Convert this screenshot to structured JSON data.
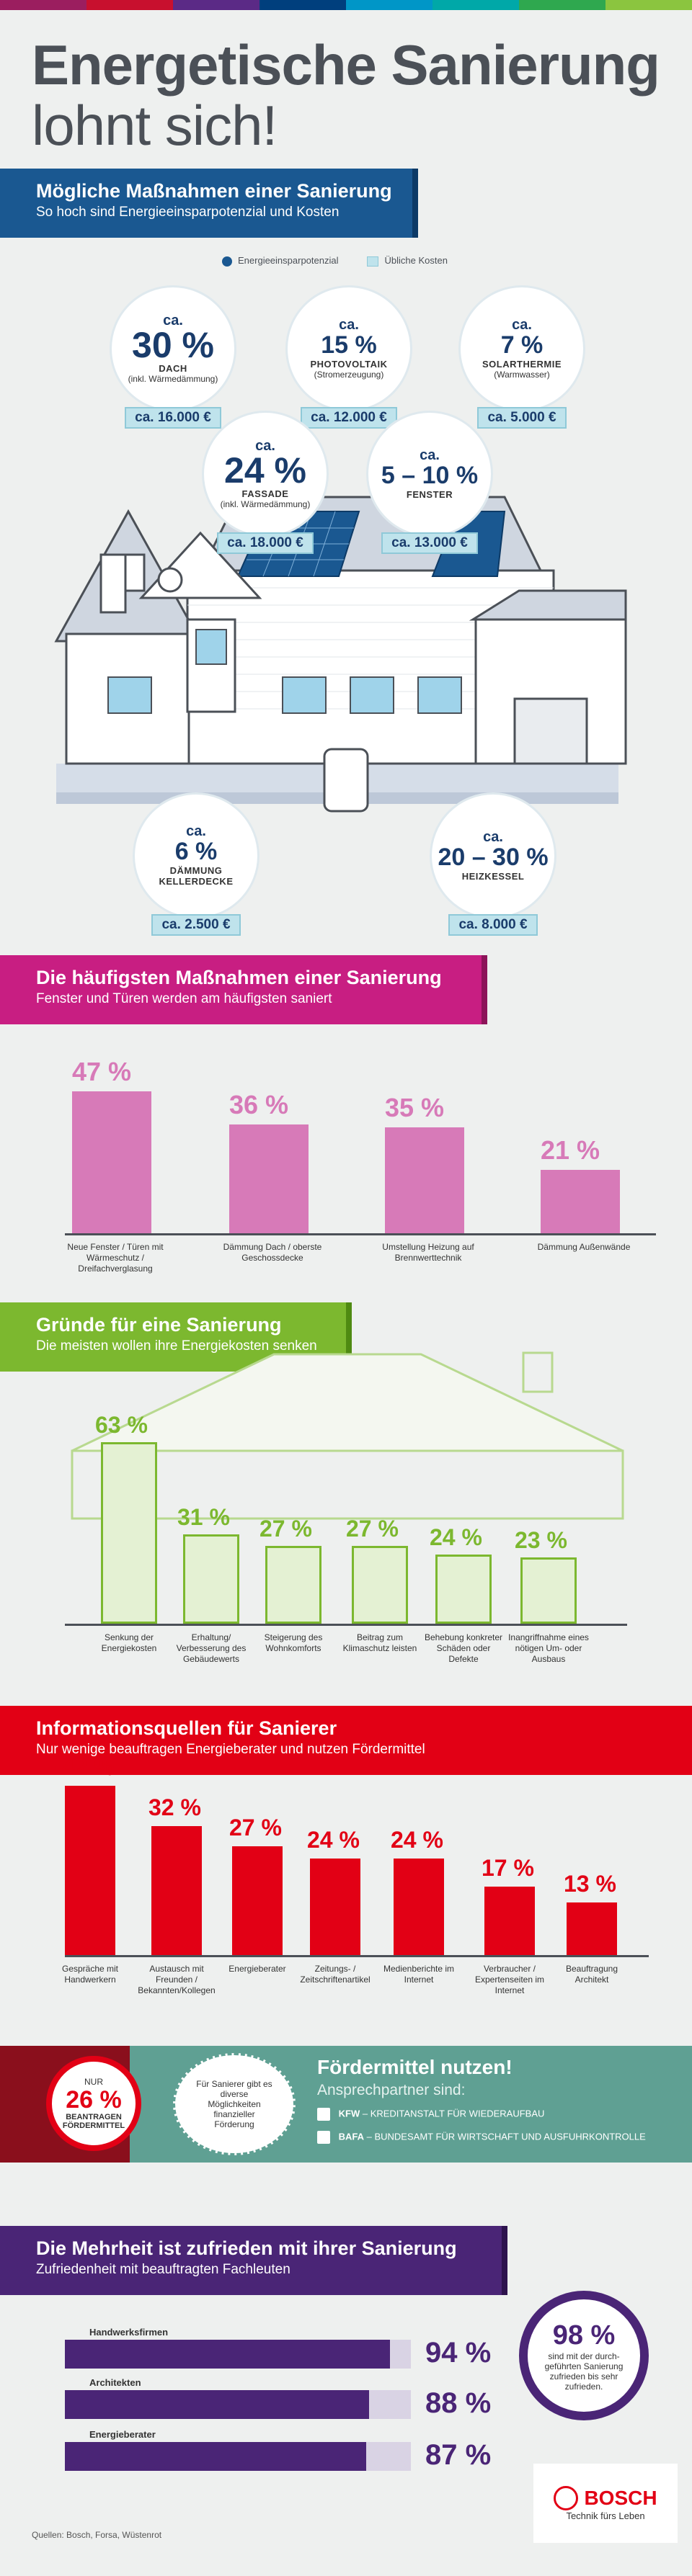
{
  "colors": {
    "blue": "#1a5891",
    "pink": "#c81e82",
    "green": "#7cb82f",
    "red": "#e20015",
    "teal": "#5fa093",
    "purple": "#4a2576"
  },
  "hero": {
    "line1": "Energetische Sanierung",
    "line2": "lohnt sich!"
  },
  "s1": {
    "title": "Mögliche Maßnahmen einer Sanierung",
    "subtitle": "So hoch sind Energieeinsparpotenzial und Kosten",
    "legend_potential": "Energieeinsparpotenzial",
    "legend_cost": "Übliche Kosten",
    "items": [
      {
        "ca": "ca.",
        "pct": "30 %",
        "name": "DACH",
        "sub": "(inkl. Wärmedämmung)",
        "cost": "ca. 16.000 €"
      },
      {
        "ca": "ca.",
        "pct": "15 %",
        "name": "PHOTOVOLTAIK",
        "sub": "(Stromerzeugung)",
        "cost": "ca. 12.000 €"
      },
      {
        "ca": "ca.",
        "pct": "7 %",
        "name": "SOLARTHERMIE",
        "sub": "(Warmwasser)",
        "cost": "ca. 5.000 €"
      },
      {
        "ca": "ca.",
        "pct": "24 %",
        "name": "FASSADE",
        "sub": "(inkl. Wärmedämmung)",
        "cost": "ca. 18.000 €"
      },
      {
        "ca": "ca.",
        "pct": "5 – 10 %",
        "name": "FENSTER",
        "sub": "",
        "cost": "ca. 13.000 €"
      },
      {
        "ca": "ca.",
        "pct": "6 %",
        "name": "DÄMMUNG",
        "sub": "KELLERDECKE",
        "cost": "ca. 2.500 €"
      },
      {
        "ca": "ca.",
        "pct": "20 – 30 %",
        "name": "HEIZKESSEL",
        "sub": "",
        "cost": "ca. 8.000 €"
      }
    ]
  },
  "s2": {
    "title": "Die häufigsten Maßnahmen einer Sanierung",
    "subtitle": "Fenster und Türen werden am häufigsten saniert",
    "bars": [
      {
        "value": 47,
        "pct": "47 %",
        "label": "Neue Fenster / Türen mit Wärmeschutz / Dreifachverglasung"
      },
      {
        "value": 36,
        "pct": "36 %",
        "label": "Dämmung Dach / oberste Geschossdecke"
      },
      {
        "value": 35,
        "pct": "35 %",
        "label": "Umstellung Heizung auf Brennwerttechnik"
      },
      {
        "value": 21,
        "pct": "21 %",
        "label": "Dämmung Außenwände"
      }
    ]
  },
  "s3": {
    "title": "Gründe für eine Sanierung",
    "subtitle": "Die meisten wollen ihre Energiekosten senken",
    "bars": [
      {
        "value": 63,
        "pct": "63 %",
        "label": "Senkung der Energiekosten"
      },
      {
        "value": 31,
        "pct": "31 %",
        "label": "Erhaltung/ Verbesserung des Gebäudewerts"
      },
      {
        "value": 27,
        "pct": "27 %",
        "label": "Steigerung des Wohnkomforts"
      },
      {
        "value": 27,
        "pct": "27 %",
        "label": "Beitrag zum Klimaschutz leisten"
      },
      {
        "value": 24,
        "pct": "24 %",
        "label": "Behebung konkreter Schäden oder Defekte"
      },
      {
        "value": 23,
        "pct": "23 %",
        "label": "Inangriffnahme eines nötigen Um- oder Ausbaus"
      }
    ]
  },
  "s4": {
    "title": "Informationsquellen für Sanierer",
    "subtitle": "Nur wenige beauftragen Energieberater und nutzen Fördermittel",
    "bars": [
      {
        "value": 42,
        "pct": "42 %",
        "label": "Gespräche mit Handwerkern"
      },
      {
        "value": 32,
        "pct": "32 %",
        "label": "Austausch mit Freunden / Bekannten/Kollegen"
      },
      {
        "value": 27,
        "pct": "27 %",
        "label": "Energieberater"
      },
      {
        "value": 24,
        "pct": "24 %",
        "label": "Zeitungs- / Zeitschriftenartikel"
      },
      {
        "value": 24,
        "pct": "24 %",
        "label": "Medienberichte im Internet"
      },
      {
        "value": 17,
        "pct": "17 %",
        "label": "Verbraucher / Expertenseiten im Internet"
      },
      {
        "value": 13,
        "pct": "13 %",
        "label": "Beauftragung Architekt"
      }
    ]
  },
  "s5": {
    "nur": "NUR",
    "pct": "26 %",
    "beantragen": "BEANTRAGEN FÖRDERMITTEL",
    "circle_text": "Für Sanierer gibt es diverse Möglichkeiten finanzieller Förderung",
    "title": "Fördermittel nutzen!",
    "subtitle": "Ansprechpartner sind:",
    "partners": [
      {
        "abbr": "KFW",
        "full": " – KREDITANSTALT FÜR WIEDERAUFBAU"
      },
      {
        "abbr": "BAFA",
        "full": " – BUNDESAMT FÜR WIRTSCHAFT UND AUSFUHRKONTROLLE"
      }
    ]
  },
  "s6": {
    "title": "Die Mehrheit ist zufrieden mit ihrer Sanierung",
    "subtitle": "Zufriedenheit mit beauftragten Fachleuten",
    "bars": [
      {
        "value": 94,
        "pct": "94 %",
        "label": "Handwerksfirmen"
      },
      {
        "value": 88,
        "pct": "88 %",
        "label": "Architekten"
      },
      {
        "value": 87,
        "pct": "87 %",
        "label": "Energieberater"
      }
    ],
    "circle_pct": "98 %",
    "circle_text": "sind mit der durch-geführten Sanierung zufrieden bis sehr zufrieden."
  },
  "bosch": {
    "name": "BOSCH",
    "tagline": "Technik fürs Leben"
  },
  "footer": "Quellen: Bosch, Forsa, Wüstenrot"
}
